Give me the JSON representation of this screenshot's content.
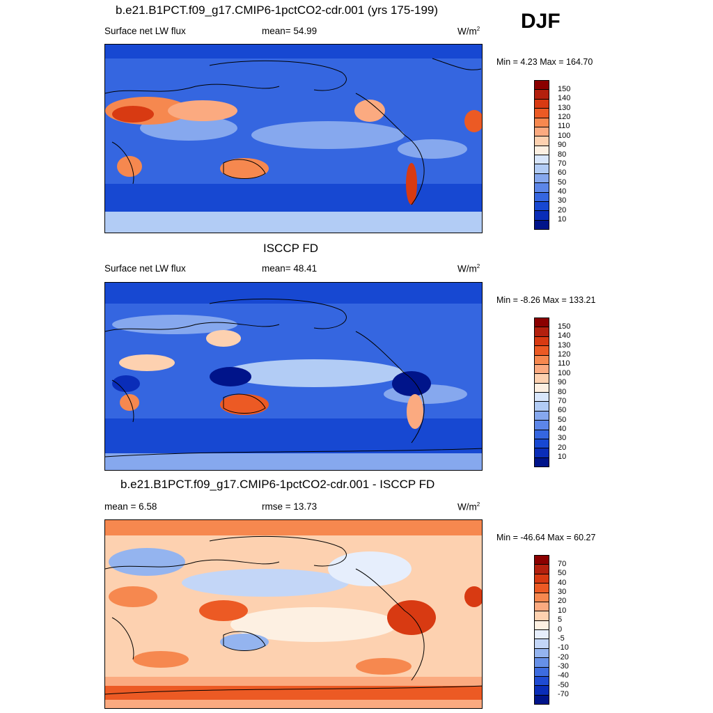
{
  "season": "DJF",
  "panels": [
    {
      "title": "b.e21.B1PCT.f09_g17.CMIP6-1pctCO2-cdr.001 (yrs 175-199)",
      "left_label": "Surface net LW flux",
      "center_label": "mean=  54.99",
      "units": "W/m",
      "units_sup": "2",
      "minmax": "Min =   4.23 Max = 164.70",
      "colorbar_labels": [
        "150",
        "140",
        "130",
        "120",
        "110",
        "100",
        "90",
        "80",
        "70",
        "60",
        "50",
        "40",
        "30",
        "20",
        "10"
      ],
      "colorbar_colors": [
        "#8b0000",
        "#b3200e",
        "#d83a12",
        "#ec5a24",
        "#f6884f",
        "#fbaa80",
        "#fdd1b0",
        "#fdf0e2",
        "#d8e6fb",
        "#b2ccf5",
        "#86a8ee",
        "#5c86e8",
        "#3566e0",
        "#1748d2",
        "#0a2db8",
        "#00148a"
      ]
    },
    {
      "title": "ISCCP FD",
      "left_label": "Surface net LW flux",
      "center_label": "mean=  48.41",
      "units": "W/m",
      "units_sup": "2",
      "minmax": "Min =  -8.26 Max = 133.21",
      "colorbar_labels": [
        "150",
        "140",
        "130",
        "120",
        "110",
        "100",
        "90",
        "80",
        "70",
        "60",
        "50",
        "40",
        "30",
        "20",
        "10"
      ],
      "colorbar_colors": [
        "#8b0000",
        "#b3200e",
        "#d83a12",
        "#ec5a24",
        "#f6884f",
        "#fbaa80",
        "#fdd1b0",
        "#fdf0e2",
        "#d8e6fb",
        "#b2ccf5",
        "#86a8ee",
        "#5c86e8",
        "#3566e0",
        "#1748d2",
        "#0a2db8",
        "#00148a"
      ]
    },
    {
      "title": "b.e21.B1PCT.f09_g17.CMIP6-1pctCO2-cdr.001 - ISCCP FD",
      "left_label": "mean =   6.58",
      "center_label": "rmse =  13.73",
      "units": "W/m",
      "units_sup": "2",
      "minmax": "Min = -46.64 Max =  60.27",
      "colorbar_labels": [
        "70",
        "50",
        "40",
        "30",
        "20",
        "10",
        "5",
        "0",
        "-5",
        "-10",
        "-20",
        "-30",
        "-40",
        "-50",
        "-70"
      ],
      "colorbar_colors": [
        "#8b0000",
        "#b3200e",
        "#d83a12",
        "#ec5a24",
        "#f6884f",
        "#fbaa80",
        "#fdd1b0",
        "#fdf0e2",
        "#e6eefc",
        "#c3d6f7",
        "#94b4ef",
        "#6690e8",
        "#3d6ce0",
        "#1f4bd3",
        "#0a2db8",
        "#00148a"
      ]
    }
  ]
}
